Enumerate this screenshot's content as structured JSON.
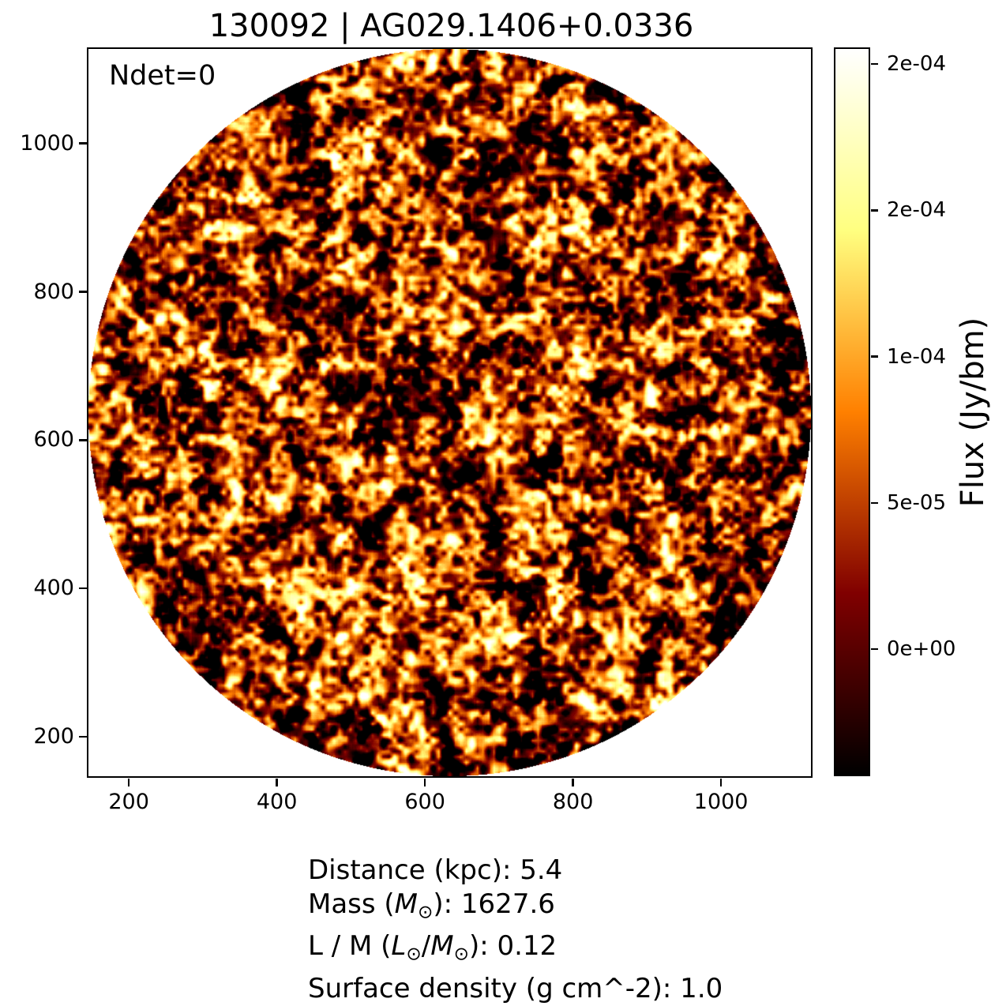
{
  "figure": {
    "title": "130092 | AG029.1406+0.0336",
    "ndet_label": "Ndet=0"
  },
  "chart_data": {
    "type": "heatmap",
    "title": "130092 | AG029.1406+0.0336",
    "description": "Circular radio-continuum flux map (correlated noise field, no detected sources) shown with a black-red-orange-yellow-white (afmhot) colormap inside an inscribed circle; area outside the circle is blank.",
    "annotations": [
      "Ndet=0"
    ],
    "x": {
      "tick_values": [
        200,
        400,
        600,
        800,
        1000
      ],
      "tick_labels": [
        "200",
        "400",
        "600",
        "800",
        "1000"
      ],
      "lim": [
        146,
        1122
      ]
    },
    "y": {
      "tick_values": [
        200,
        400,
        600,
        800,
        1000
      ],
      "tick_labels": [
        "200",
        "400",
        "600",
        "800",
        "1000"
      ],
      "lim": [
        146,
        1127
      ]
    },
    "colorbar": {
      "label": "Flux (Jy/bm)",
      "vmin": -4.3e-05,
      "vmax": 0.000205,
      "ticks": [
        {
          "value": 0.0002,
          "label": "2e-04"
        },
        {
          "value": 0.00015,
          "label": "2e-04"
        },
        {
          "value": 0.0001,
          "label": "1e-04"
        },
        {
          "value": 5e-05,
          "label": "5e-05"
        },
        {
          "value": 0.0,
          "label": "0e+00"
        }
      ],
      "colormap": "afmhot",
      "colormap_stops": [
        "#000000",
        "#800000",
        "#ff8000",
        "#ffff80",
        "#ffffff"
      ]
    }
  },
  "footer": {
    "lines": [
      {
        "parts": [
          {
            "t": "Distance (kpc): 5.4"
          }
        ]
      },
      {
        "parts": [
          {
            "t": "Mass ("
          },
          {
            "t": "M",
            "i": 1
          },
          {
            "t": "⊙",
            "sub": 1
          },
          {
            "t": "): 1627.6"
          }
        ]
      },
      {
        "parts": [
          {
            "t": "L / M ("
          },
          {
            "t": "L",
            "i": 1
          },
          {
            "t": "⊙",
            "sub": 1
          },
          {
            "t": "/"
          },
          {
            "t": "M",
            "i": 1
          },
          {
            "t": "⊙",
            "sub": 1
          },
          {
            "t": "): 0.12"
          }
        ]
      },
      {
        "parts": [
          {
            "t": "Surface density (g cm^-2): 1.0"
          }
        ]
      }
    ]
  }
}
